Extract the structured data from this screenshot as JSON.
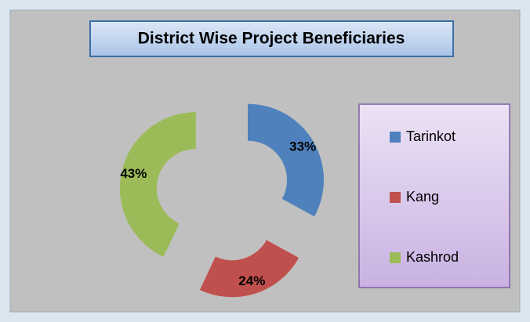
{
  "chart_data": {
    "type": "pie",
    "title": "District Wise Project Beneficiaries",
    "categories": [
      "Tarinkot",
      "Kang",
      "Kashrod"
    ],
    "values": [
      33,
      24,
      43
    ],
    "value_labels": [
      "33%",
      "24%",
      "43%"
    ],
    "colors": [
      "#4f81bd",
      "#c0504d",
      "#9bbb59"
    ],
    "donut": true,
    "exploded": true,
    "legend": "right"
  }
}
